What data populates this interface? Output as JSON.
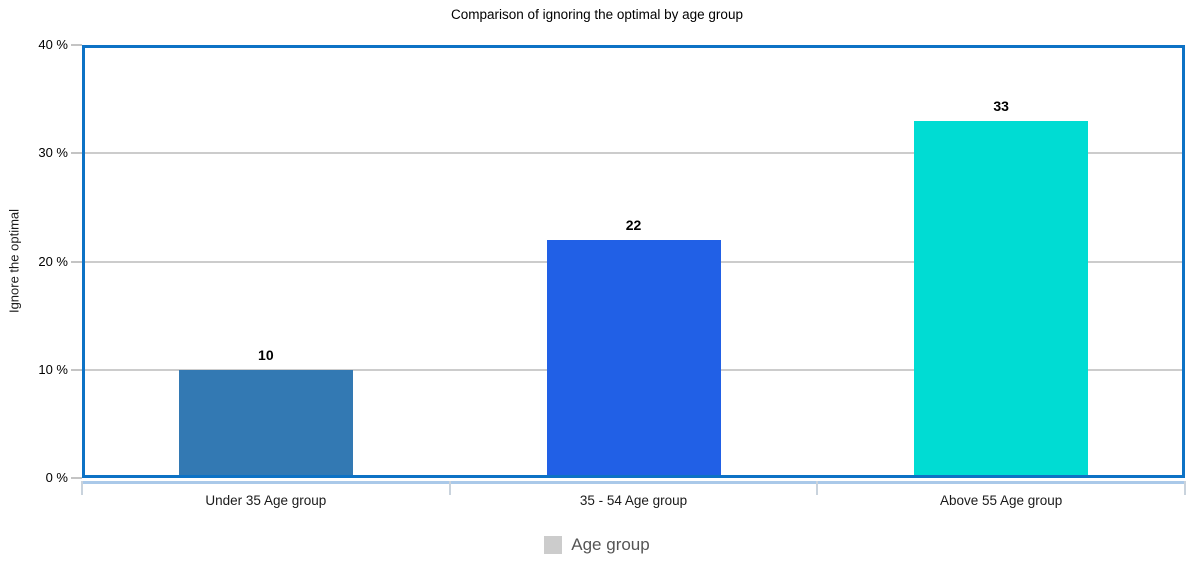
{
  "chart": {
    "title": "Comparison of ignoring the optimal by age group"
  },
  "chart_data": {
    "type": "bar",
    "title": "Comparison of ignoring the optimal by age group",
    "categories": [
      "Under 35 Age group",
      "35 - 54 Age group",
      "Above 55 Age group"
    ],
    "values": [
      10,
      22,
      33
    ],
    "value_labels": [
      "10",
      "22",
      "33"
    ],
    "bar_colors": [
      "#3379b3",
      "#2160e6",
      "#00dcd3"
    ],
    "xlabel": "Age group",
    "ylabel": "Ignore the optimal",
    "ylim": [
      0,
      40
    ],
    "yticks": [
      0,
      10,
      20,
      30,
      40
    ],
    "ytick_labels": [
      "0 %",
      "10 %",
      "20 %",
      "30 %",
      "40 %"
    ],
    "grid": true,
    "legend": {
      "position": "bottom",
      "label": "Age group",
      "swatch_color": "#cccccc"
    }
  },
  "colors": {
    "plot_border": "#0d72c5",
    "axis_underline": "#aac9e9",
    "gridline": "#cccccc",
    "tick": "#c4c4c4",
    "boundary_tick": "#c9d3dd",
    "legend_text": "#555555"
  }
}
